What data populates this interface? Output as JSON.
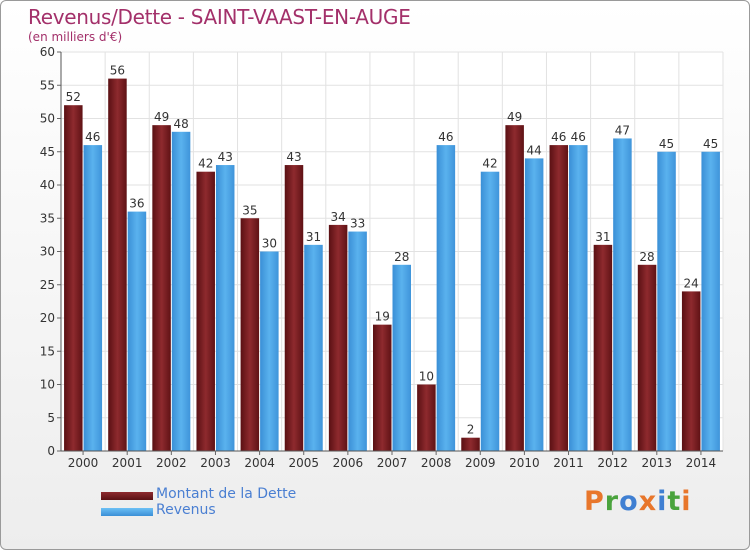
{
  "colors": {
    "dette": "#7b1f23",
    "revenus": "#4da3e4",
    "title": "#a3306a",
    "legend_text": "#4a7fd2",
    "logo_p": "#e8762b",
    "logo_r": "#4aa33d",
    "logo_o": "#3f7fd2",
    "logo_x": "#e8762b",
    "logo_i": "#3f7fd2",
    "logo_t": "#4aa33d",
    "logo_i2": "#e8762b"
  },
  "logo": {
    "text": "Proxiti",
    "letters": [
      "P",
      "r",
      "o",
      "x",
      "i",
      "t",
      "i"
    ]
  },
  "chart_data": {
    "type": "bar",
    "title": "Revenus/Dette - SAINT-VAAST-EN-AUGE",
    "subtitle": "(en milliers d'€)",
    "categories": [
      "2000",
      "2001",
      "2002",
      "2003",
      "2004",
      "2005",
      "2006",
      "2007",
      "2008",
      "2009",
      "2010",
      "2011",
      "2012",
      "2013",
      "2014"
    ],
    "series": [
      {
        "name": "Montant de la Dette",
        "values": [
          52,
          56,
          49,
          42,
          35,
          43,
          34,
          19,
          10,
          2,
          49,
          46,
          31,
          28,
          24
        ]
      },
      {
        "name": "Revenus",
        "values": [
          46,
          36,
          48,
          43,
          30,
          31,
          33,
          28,
          46,
          42,
          44,
          46,
          47,
          45,
          45
        ]
      }
    ],
    "y_ticks": [
      "0",
      "5",
      "10",
      "15",
      "20",
      "25",
      "30",
      "35",
      "40",
      "45",
      "50",
      "55",
      "60"
    ],
    "ylim": [
      0,
      60
    ],
    "grid": true,
    "legend_position": "bottom-left"
  }
}
